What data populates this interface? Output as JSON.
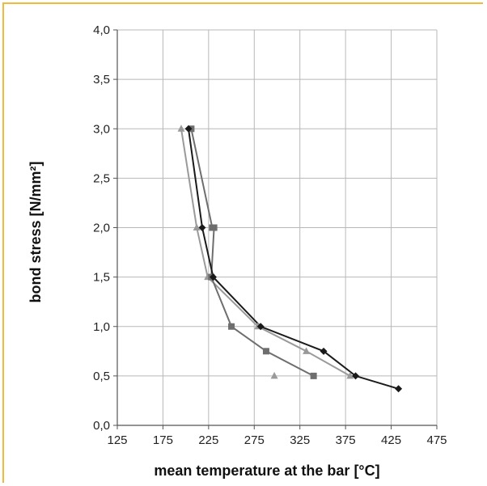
{
  "chart_data": {
    "type": "line",
    "title": "",
    "xlabel": "mean temperature at the bar [°C]",
    "ylabel": "bond stress [N/mm²]",
    "xlim": [
      125,
      475
    ],
    "ylim": [
      0,
      4
    ],
    "x_ticks": [
      "125",
      "175",
      "225",
      "275",
      "325",
      "375",
      "425",
      "475"
    ],
    "y_ticks": [
      "0,0",
      "0,5",
      "1,0",
      "1,5",
      "2,0",
      "2,5",
      "3,0",
      "3,5",
      "4,0"
    ],
    "grid": true,
    "legend": "none",
    "series": [
      {
        "marker": "diamond",
        "color": "#1a1a1a",
        "points": [
          [
            203,
            3.0
          ],
          [
            218,
            2.0
          ],
          [
            230,
            1.5
          ],
          [
            282,
            1.0
          ],
          [
            351,
            0.75
          ],
          [
            386,
            0.5
          ],
          [
            433,
            0.37
          ]
        ]
      },
      {
        "marker": "square",
        "color": "#6e6e6e",
        "points": [
          [
            206,
            3.0
          ],
          [
            229,
            2.0
          ],
          [
            231,
            2.0
          ],
          [
            228,
            1.5
          ],
          [
            250,
            1.0
          ],
          [
            288,
            0.75
          ],
          [
            340,
            0.5
          ]
        ]
      },
      {
        "marker": "triangle",
        "color": "#9a9a9a",
        "points": [
          [
            195,
            3.0
          ],
          [
            212,
            2.0
          ],
          [
            224,
            1.5
          ],
          [
            279,
            1.0
          ],
          [
            332,
            0.75
          ],
          [
            380,
            0.5
          ]
        ]
      },
      {
        "marker": "triangle",
        "color": "#9a9a9a",
        "points": [
          [
            297,
            0.5
          ]
        ]
      }
    ]
  }
}
